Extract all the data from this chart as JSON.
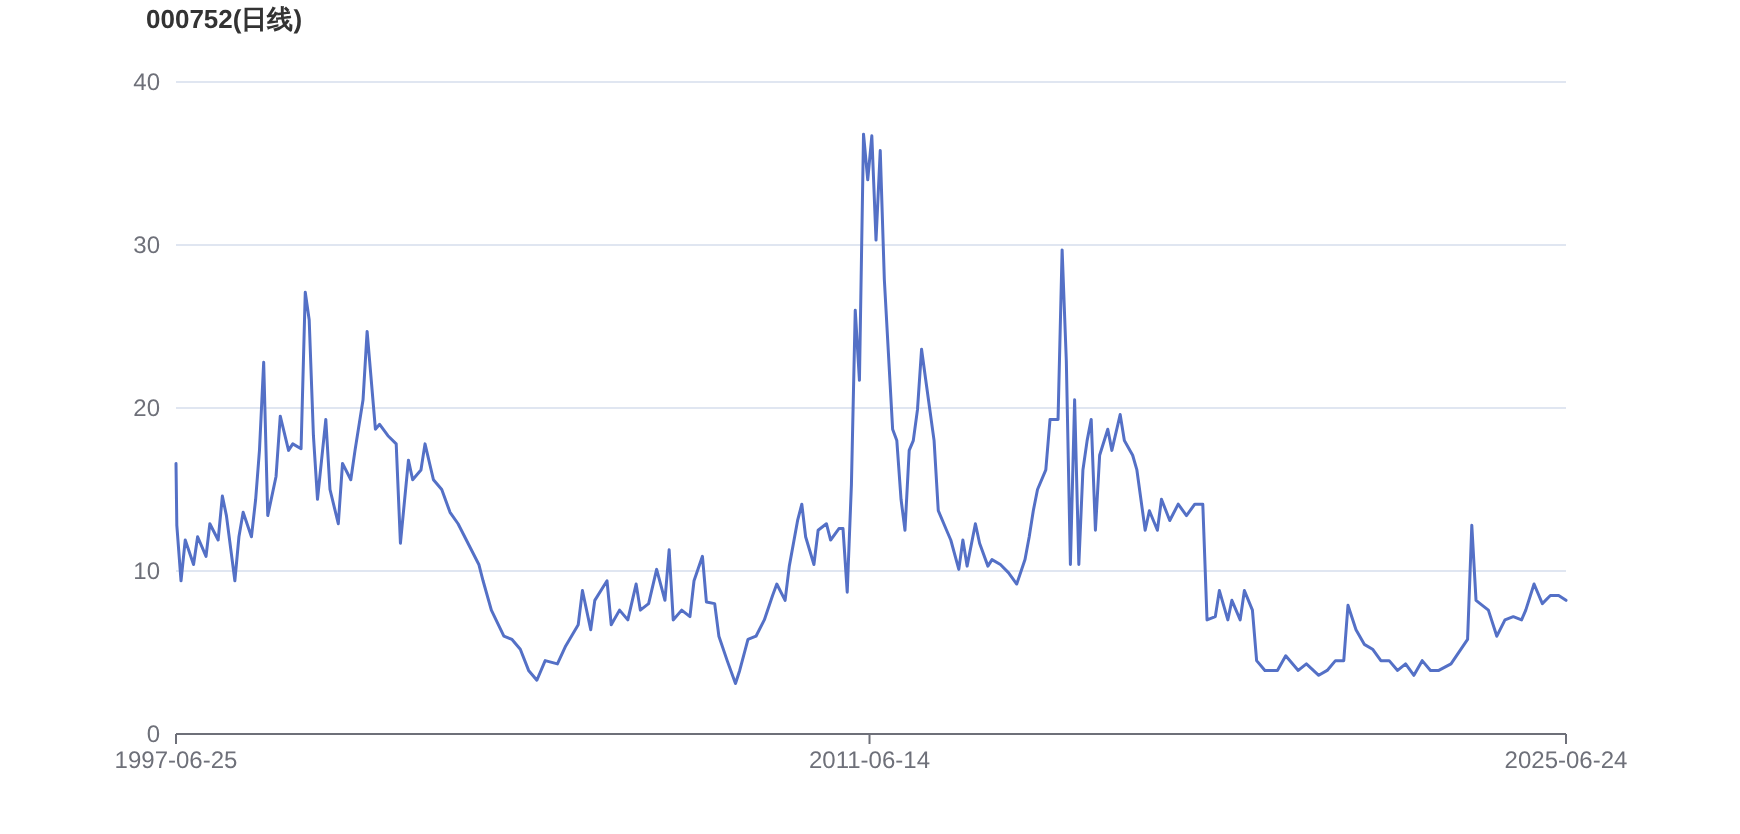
{
  "chart_data": {
    "type": "line",
    "title": "000752(日线)",
    "color": "#5470c6",
    "grid": "y",
    "xlim": [
      "1997-06-25",
      "2025-06-24"
    ],
    "xticks": [
      "1997-06-25",
      "2011-06-14",
      "2025-06-24"
    ],
    "ylim": [
      0,
      40
    ],
    "yticks": [
      0,
      10,
      20,
      30,
      40
    ],
    "x": [
      "1997-06-25",
      "1997-07",
      "1997-08",
      "1997-09",
      "1997-11",
      "1997-12",
      "1998-02",
      "1998-03",
      "1998-05",
      "1998-06",
      "1998-07",
      "1998-09",
      "1998-10",
      "1998-11",
      "1999-01",
      "1999-02",
      "1999-03",
      "1999-04",
      "1999-05",
      "1999-07",
      "1999-08",
      "1999-10",
      "1999-11",
      "2000-01",
      "2000-02",
      "2000-03",
      "2000-04",
      "2000-05",
      "2000-07",
      "2000-08",
      "2000-10",
      "2000-11",
      "2001-01",
      "2001-02",
      "2001-04",
      "2001-05",
      "2001-07",
      "2001-08",
      "2001-10",
      "2001-12",
      "2002-01",
      "2002-03",
      "2002-04",
      "2002-06",
      "2002-07",
      "2002-09",
      "2002-11",
      "2003-01",
      "2003-03",
      "2003-05",
      "2003-08",
      "2003-09",
      "2003-11",
      "2004-02",
      "2004-04",
      "2004-06",
      "2004-08",
      "2004-10",
      "2004-12",
      "2005-03",
      "2005-05",
      "2005-08",
      "2005-09",
      "2005-11",
      "2005-12",
      "2006-03",
      "2006-04",
      "2006-06",
      "2006-08",
      "2006-10",
      "2006-11",
      "2007-01",
      "2007-03",
      "2007-05",
      "2007-06",
      "2007-07",
      "2007-09",
      "2007-11",
      "2007-12",
      "2008-02",
      "2008-03",
      "2008-05",
      "2008-06",
      "2008-08",
      "2008-10",
      "2008-11",
      "2009-01",
      "2009-03",
      "2009-05",
      "2009-07",
      "2009-08",
      "2009-10",
      "2009-11",
      "2010-01",
      "2010-02",
      "2010-03",
      "2010-05",
      "2010-06",
      "2010-08",
      "2010-09",
      "2010-11",
      "2010-12",
      "2011-01",
      "2011-02",
      "2011-03",
      "2011-04",
      "2011-05",
      "2011-06",
      "2011-07",
      "2011-08",
      "2011-09",
      "2011-10",
      "2011-12",
      "2012-01",
      "2012-02",
      "2012-03",
      "2012-04",
      "2012-05",
      "2012-06",
      "2012-07",
      "2012-08",
      "2012-10",
      "2012-11",
      "2013-01",
      "2013-02",
      "2013-04",
      "2013-05",
      "2013-06",
      "2013-08",
      "2013-09",
      "2013-11",
      "2013-12",
      "2014-02",
      "2014-04",
      "2014-06",
      "2014-08",
      "2014-09",
      "2014-10",
      "2014-11",
      "2015-01",
      "2015-02",
      "2015-04",
      "2015-05",
      "2015-06",
      "2015-07",
      "2015-08",
      "2015-09",
      "2015-10",
      "2015-11",
      "2015-12",
      "2016-01",
      "2016-02",
      "2016-04",
      "2016-05",
      "2016-07",
      "2016-08",
      "2016-10",
      "2016-11",
      "2017-01",
      "2017-02",
      "2017-04",
      "2017-05",
      "2017-07",
      "2017-09",
      "2017-11",
      "2018-01",
      "2018-03",
      "2018-04",
      "2018-06",
      "2018-07",
      "2018-09",
      "2018-10",
      "2018-12",
      "2019-01",
      "2019-03",
      "2019-04",
      "2019-06",
      "2019-09",
      "2019-11",
      "2020-02",
      "2020-04",
      "2020-07",
      "2020-09",
      "2020-11",
      "2021-01",
      "2021-02",
      "2021-04",
      "2021-06",
      "2021-08",
      "2021-10",
      "2021-12",
      "2022-02",
      "2022-04",
      "2022-06",
      "2022-08",
      "2022-10",
      "2022-12",
      "2023-03",
      "2023-07",
      "2023-08",
      "2023-09",
      "2023-10",
      "2023-12",
      "2024-02",
      "2024-04",
      "2024-06",
      "2024-08",
      "2024-09",
      "2024-11",
      "2025-01",
      "2025-03",
      "2025-05",
      "2025-06-24"
    ],
    "values": [
      16.6,
      12.8,
      9.4,
      11.9,
      10.4,
      12.1,
      10.9,
      12.9,
      11.9,
      14.6,
      13.4,
      9.4,
      12.1,
      13.6,
      12.1,
      14.4,
      17.4,
      22.8,
      13.4,
      15.8,
      19.5,
      17.4,
      17.8,
      17.5,
      27.1,
      25.4,
      18.3,
      14.4,
      19.3,
      15.0,
      12.9,
      16.6,
      15.6,
      17.4,
      20.5,
      24.7,
      18.7,
      19.0,
      18.3,
      17.8,
      11.7,
      16.8,
      15.6,
      16.2,
      17.8,
      15.6,
      15.0,
      13.6,
      12.9,
      11.9,
      10.4,
      9.4,
      7.6,
      6.0,
      5.8,
      5.2,
      3.9,
      3.3,
      4.5,
      4.3,
      5.4,
      6.7,
      8.8,
      6.4,
      8.2,
      9.4,
      6.7,
      7.6,
      7.0,
      9.2,
      7.6,
      8.0,
      10.1,
      8.2,
      11.3,
      7.0,
      7.6,
      7.2,
      9.4,
      10.9,
      8.1,
      8.0,
      6.0,
      4.5,
      3.1,
      3.9,
      5.8,
      6.0,
      7.0,
      8.5,
      9.2,
      8.2,
      10.3,
      13.1,
      14.1,
      12.1,
      10.4,
      12.5,
      12.9,
      11.9,
      12.6,
      12.6,
      8.7,
      15.3,
      26.0,
      21.7,
      36.8,
      34.0,
      36.7,
      30.3,
      35.8,
      27.9,
      18.7,
      18.0,
      14.4,
      12.5,
      17.4,
      18.0,
      19.9,
      23.6,
      21.7,
      18.0,
      13.7,
      12.5,
      11.9,
      10.1,
      11.9,
      10.3,
      12.9,
      11.7,
      10.3,
      10.7,
      10.4,
      9.9,
      9.2,
      10.7,
      12.1,
      13.7,
      15.0,
      16.2,
      19.3,
      19.3,
      29.7,
      22.9,
      10.4,
      20.5,
      10.4,
      16.2,
      18.0,
      19.3,
      12.5,
      17.1,
      18.7,
      17.4,
      19.6,
      18.0,
      17.1,
      16.2,
      12.5,
      13.7,
      12.5,
      14.4,
      13.1,
      14.1,
      13.4,
      14.1,
      14.1,
      7.0,
      7.2,
      8.8,
      7.0,
      8.2,
      7.0,
      8.8,
      7.6,
      4.5,
      3.9,
      3.9,
      4.8,
      3.9,
      4.3,
      3.6,
      3.9,
      4.5,
      4.5,
      7.9,
      6.4,
      5.5,
      5.2,
      4.5,
      4.5,
      3.9,
      4.3,
      3.6,
      4.5,
      3.9,
      3.9,
      4.3,
      5.8,
      12.8,
      8.2,
      8.0,
      7.6,
      6.0,
      7.0,
      7.2,
      7.0,
      7.6,
      9.2,
      8.0,
      8.5,
      8.5,
      8.2
    ]
  }
}
